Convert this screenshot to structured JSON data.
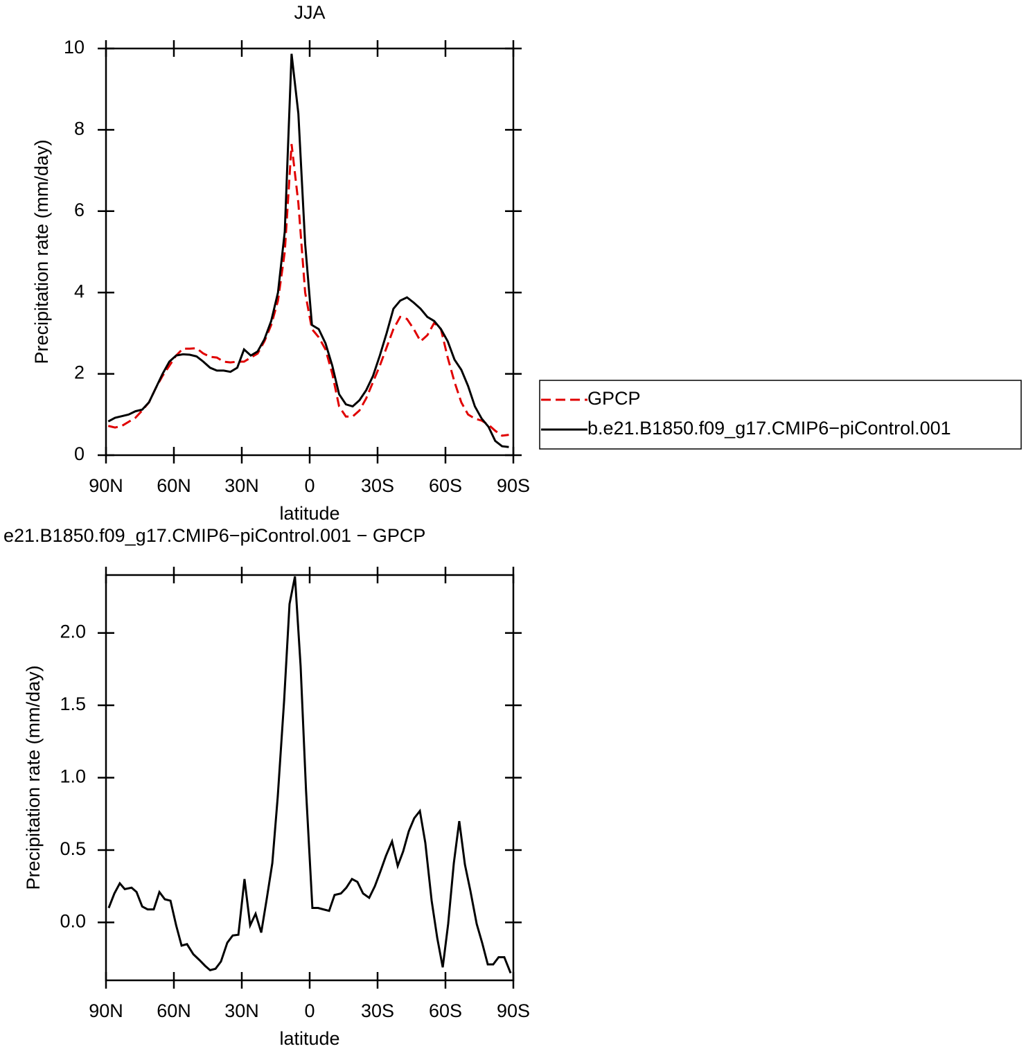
{
  "chart_data": [
    {
      "type": "line",
      "title": "JJA",
      "x_label": "latitude",
      "y_label": "Precipitation rate (mm/day)",
      "x": [
        89,
        86,
        83,
        80,
        77,
        74,
        71,
        68,
        65,
        62,
        59,
        56,
        53,
        50,
        47,
        44,
        41,
        38,
        35,
        32,
        29,
        26,
        23,
        20,
        17,
        14,
        11,
        8,
        5,
        2,
        -1,
        -4,
        -7,
        -10,
        -13,
        -16,
        -19,
        -22,
        -25,
        -28,
        -31,
        -34,
        -37,
        -40,
        -43,
        -46,
        -49,
        -52,
        -55,
        -58,
        -61,
        -64,
        -67,
        -70,
        -73,
        -76,
        -79,
        -82,
        -85,
        -88
      ],
      "series": [
        {
          "name": "GPCP",
          "color": "#e00000",
          "dashed": true,
          "values": [
            0.72,
            0.68,
            0.72,
            0.82,
            0.92,
            1.1,
            1.3,
            1.65,
            1.95,
            2.2,
            2.45,
            2.62,
            2.62,
            2.63,
            2.5,
            2.42,
            2.4,
            2.3,
            2.28,
            2.3,
            2.3,
            2.4,
            2.5,
            2.8,
            3.2,
            3.8,
            5.0,
            7.65,
            6.2,
            4.0,
            3.1,
            2.9,
            2.6,
            2.0,
            1.2,
            0.95,
            0.95,
            1.1,
            1.4,
            1.8,
            2.2,
            2.65,
            3.1,
            3.4,
            3.35,
            3.1,
            2.8,
            2.95,
            3.25,
            3.1,
            2.4,
            1.8,
            1.3,
            1.0,
            0.9,
            0.85,
            0.75,
            0.6,
            0.48,
            0.5
          ]
        },
        {
          "name": "b.e21.B1850.f09_g17.CMIP6−piControl.001",
          "color": "#000000",
          "dashed": false,
          "values": [
            0.83,
            0.92,
            0.96,
            1.0,
            1.08,
            1.12,
            1.3,
            1.65,
            2.0,
            2.3,
            2.45,
            2.48,
            2.47,
            2.43,
            2.3,
            2.15,
            2.08,
            2.08,
            2.05,
            2.15,
            2.6,
            2.45,
            2.55,
            2.85,
            3.3,
            4.0,
            5.5,
            9.87,
            8.4,
            5.2,
            3.2,
            3.1,
            2.75,
            2.2,
            1.5,
            1.25,
            1.2,
            1.35,
            1.6,
            1.95,
            2.45,
            3.0,
            3.6,
            3.8,
            3.88,
            3.75,
            3.6,
            3.4,
            3.3,
            3.1,
            2.8,
            2.35,
            2.1,
            1.7,
            1.2,
            0.9,
            0.7,
            0.35,
            0.22,
            0.2
          ]
        }
      ],
      "xlim": [
        90,
        -90
      ],
      "ylim": [
        0,
        10
      ],
      "xticks": [
        {
          "value": 90,
          "label": "90N"
        },
        {
          "value": 60,
          "label": "60N"
        },
        {
          "value": 30,
          "label": "30N"
        },
        0,
        {
          "value": -30,
          "label": "30S"
        },
        {
          "value": -60,
          "label": "60S"
        },
        {
          "value": -90,
          "label": "90S"
        }
      ],
      "yticks": [
        0,
        2,
        4,
        6,
        8,
        10
      ],
      "legend": "right"
    },
    {
      "type": "line",
      "title": "e21.B1850.f09_g17.CMIP6−piControl.001  −  GPCP",
      "x_label": "latitude",
      "y_label": "Precipitation rate (mm/day)",
      "x": [
        88.8,
        86.3,
        83.9,
        81.7,
        78.7,
        76.5,
        74,
        71.6,
        68.9,
        66.4,
        64,
        61.5,
        59,
        56.6,
        54.2,
        51.4,
        48.7,
        46.2,
        44,
        41.6,
        39.2,
        36.4,
        34,
        31.5,
        28.8,
        26.3,
        23.9,
        21.4,
        19,
        16.5,
        14.1,
        11.3,
        8.9,
        6.5,
        4,
        1.6,
        -1.2,
        -3.7,
        -6.1,
        -8.6,
        -11,
        -13.8,
        -16.2,
        -18.7,
        -21.1,
        -23.6,
        -26.3,
        -28.8,
        -31.2,
        -33.7,
        -36.4,
        -38.9,
        -41.3,
        -43.8,
        -46.2,
        -48.7,
        -51.1,
        -53.9,
        -56.4,
        -58.8,
        -61.2,
        -63.7,
        -66.1,
        -68.6,
        -71,
        -73.8,
        -76.2,
        -78.7,
        -81.1,
        -83.5,
        -86,
        -88.8
      ],
      "series": [
        {
          "color": "#000000",
          "values": [
            0.1,
            0.2,
            0.27,
            0.23,
            0.24,
            0.21,
            0.11,
            0.09,
            0.09,
            0.21,
            0.16,
            0.15,
            -0.02,
            -0.16,
            -0.15,
            -0.22,
            -0.26,
            -0.3,
            -0.33,
            -0.32,
            -0.27,
            -0.14,
            -0.09,
            -0.085,
            0.3,
            -0.02,
            0.06,
            -0.07,
            0.16,
            0.41,
            0.87,
            1.53,
            2.2,
            2.39,
            1.77,
            0.91,
            0.1,
            0.1,
            0.09,
            0.08,
            0.19,
            0.2,
            0.24,
            0.3,
            0.28,
            0.2,
            0.17,
            0.25,
            0.35,
            0.46,
            0.56,
            0.39,
            0.49,
            0.63,
            0.72,
            0.77,
            0.55,
            0.15,
            -0.11,
            -0.31,
            -0.01,
            0.41,
            0.7,
            0.4,
            0.22,
            -0.01,
            -0.14,
            -0.29,
            -0.29,
            -0.24,
            -0.24,
            -0.35
          ]
        }
      ],
      "xlim": [
        90,
        -90
      ],
      "ylim": [
        -0.4,
        2.4
      ],
      "xticks": [
        {
          "value": 90,
          "label": "90N"
        },
        {
          "value": 60,
          "label": "60N"
        },
        {
          "value": 30,
          "label": "30N"
        },
        0,
        {
          "value": -30,
          "label": "30S"
        },
        {
          "value": -60,
          "label": "60S"
        },
        {
          "value": -90,
          "label": "90S"
        }
      ],
      "yticks": [
        {
          "value": 0,
          "label": "0.0"
        },
        0.5,
        {
          "value": 1,
          "label": "1.0"
        },
        1.5,
        {
          "value": 2,
          "label": "2.0"
        }
      ]
    }
  ]
}
